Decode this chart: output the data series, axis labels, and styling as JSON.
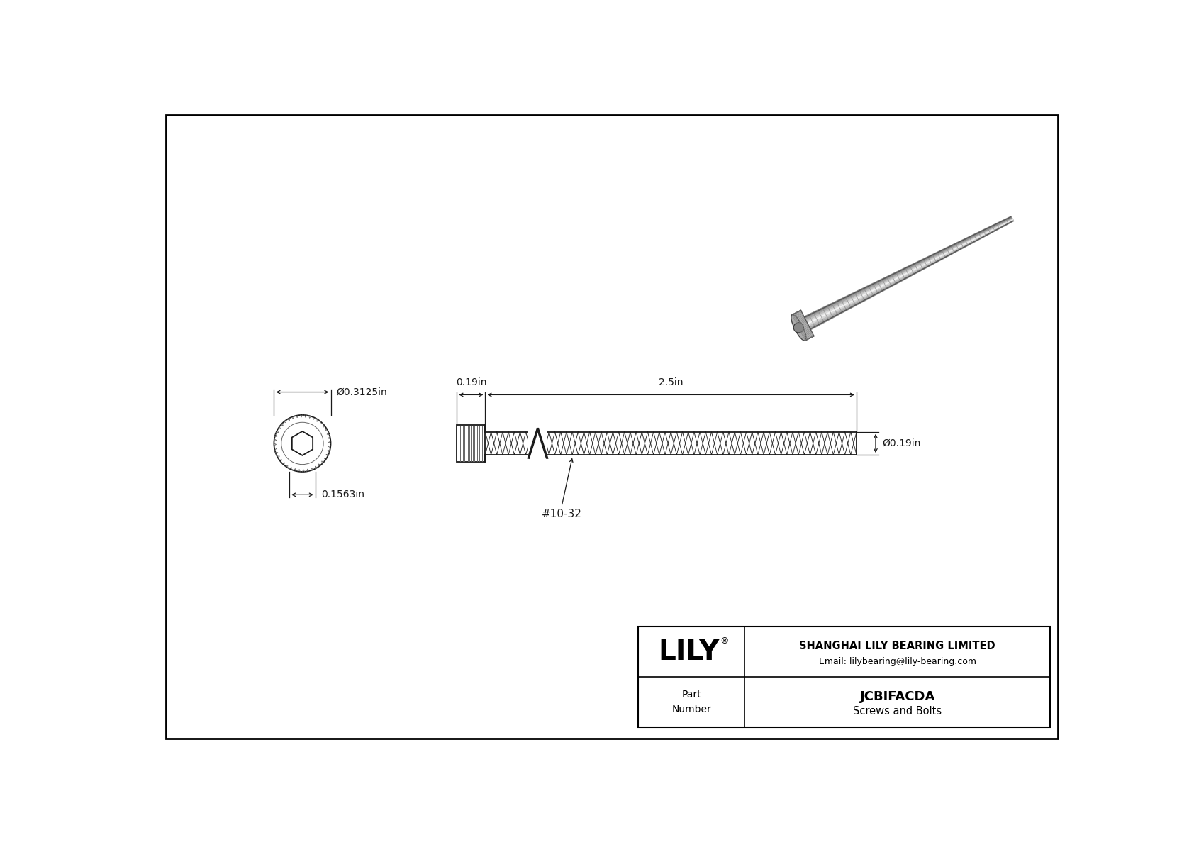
{
  "bg_color": "#ffffff",
  "dark": "#1a1a1a",
  "gray": "#666666",
  "light_gray": "#aaaaaa",
  "dim_color": "#333333",
  "title_company": "SHANGHAI LILY BEARING LIMITED",
  "title_email": "Email: lilybearing@lily-bearing.com",
  "part_number": "JCBIFACDA",
  "part_category": "Screws and Bolts",
  "label_part": "Part\nNumber",
  "label_lily": "LILY",
  "dim_diameter_head": "Ø0.3125in",
  "dim_head_height": "0.1563in",
  "dim_thread_len": "2.5in",
  "dim_head_len": "0.19in",
  "dim_shaft_dia": "Ø0.19in",
  "thread_label": "#10-32"
}
